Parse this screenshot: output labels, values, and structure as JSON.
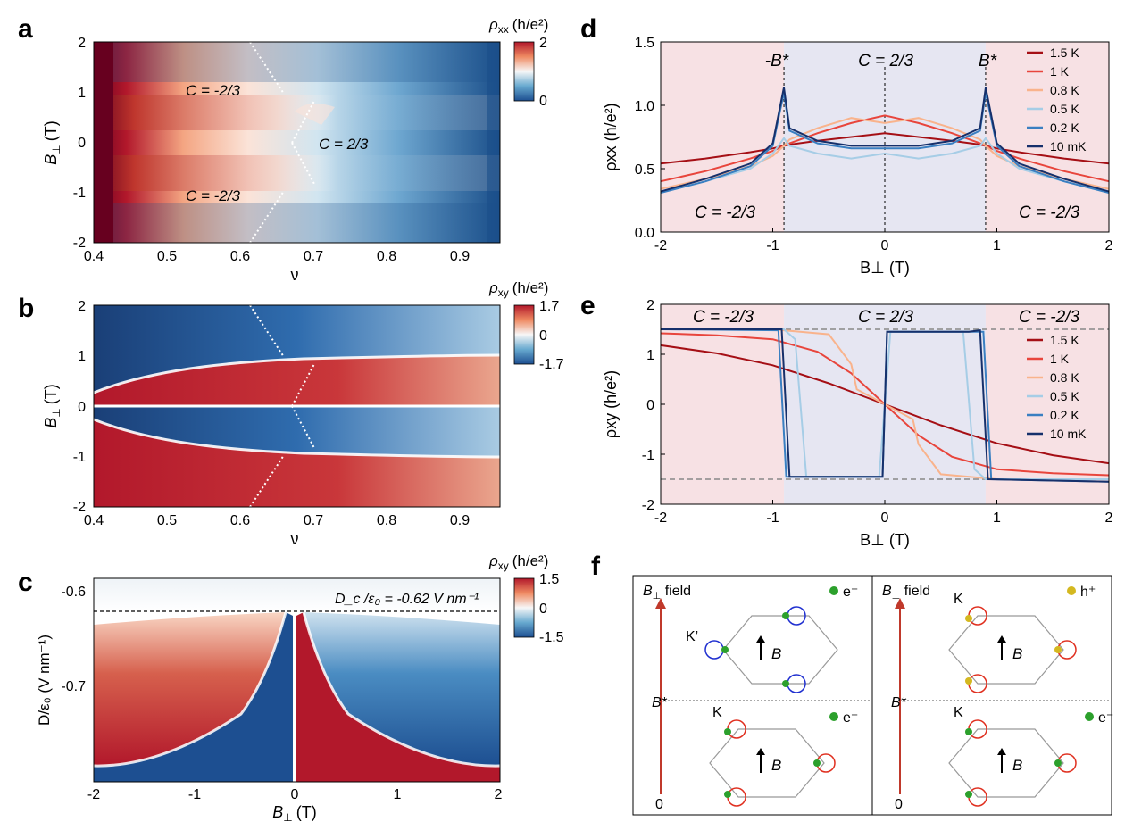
{
  "panel_letters": {
    "a": "a",
    "b": "b",
    "c": "c",
    "d": "d",
    "e": "e",
    "f": "f"
  },
  "colors": {
    "red": "#b2182b",
    "blue": "#2166ac",
    "white": "#ffffff",
    "pink_bg": "#f7e1e4",
    "lav_bg": "#e6e6f2"
  },
  "panel_a": {
    "cbar_label_main": "ρ",
    "cbar_label_sub": "xx",
    "cbar_label_unit": "(h/e²)",
    "cbar_ticks": [
      "2",
      "0"
    ],
    "ylabel_main": "B",
    "ylabel_sub": "⊥",
    "ylabel_unit": "(T)",
    "xlabel": "ν",
    "yticks": [
      "2",
      "1",
      "0",
      "-1",
      "-2"
    ],
    "xticks": [
      "0.4",
      "0.5",
      "0.6",
      "0.7",
      "0.8",
      "0.9"
    ],
    "annotations": [
      "C = -2/3",
      "C = 2/3",
      "C = -2/3"
    ]
  },
  "panel_b": {
    "cbar_label_main": "ρ",
    "cbar_label_sub": "xy",
    "cbar_label_unit": "(h/e²)",
    "cbar_ticks": [
      "1.7",
      "0",
      "-1.7"
    ],
    "ylabel_main": "B",
    "ylabel_sub": "⊥",
    "ylabel_unit": "(T)",
    "xlabel": "ν",
    "yticks": [
      "2",
      "1",
      "0",
      "-1",
      "-2"
    ],
    "xticks": [
      "0.4",
      "0.5",
      "0.6",
      "0.7",
      "0.8",
      "0.9"
    ]
  },
  "panel_c": {
    "cbar_label_main": "ρ",
    "cbar_label_sub": "xy",
    "cbar_label_unit": "(h/e²)",
    "cbar_ticks": [
      "1.5",
      "0",
      "-1.5"
    ],
    "ylabel": "D/ε₀ (V nm⁻¹)",
    "xlabel_main": "B",
    "xlabel_sub": "⊥",
    "xlabel_unit": "(T)",
    "yticks": [
      "-0.6",
      "-0.7"
    ],
    "xticks": [
      "-2",
      "-1",
      "0",
      "1",
      "2"
    ],
    "annotation": "D_c /ε₀ = -0.62 V nm⁻¹"
  },
  "chart_data": [
    {
      "type": "line",
      "panel": "d",
      "ylabel": "ρxx (h/e²)",
      "xlabel": "B⊥ (T)",
      "xlim": [
        -2,
        2
      ],
      "ylim": [
        0,
        1.5
      ],
      "xticks": [
        "-2",
        "-1",
        "0",
        "1",
        "2"
      ],
      "yticks": [
        "0.0",
        "0.5",
        "1.0",
        "1.5"
      ],
      "annotations": [
        "-B*",
        "C = 2/3",
        "B*",
        "C = -2/3",
        "C = -2/3"
      ],
      "legend": "top-right",
      "x": [
        -2,
        -1.6,
        -1.2,
        -1.0,
        -0.9,
        -0.85,
        -0.6,
        -0.3,
        0,
        0.3,
        0.6,
        0.85,
        0.9,
        1.0,
        1.2,
        1.6,
        2
      ],
      "series": [
        {
          "name": "1.5 K",
          "color": "#a50f15",
          "values": [
            0.54,
            0.58,
            0.63,
            0.66,
            0.68,
            0.69,
            0.72,
            0.75,
            0.78,
            0.75,
            0.72,
            0.69,
            0.68,
            0.66,
            0.63,
            0.58,
            0.54
          ]
        },
        {
          "name": "1 K",
          "color": "#e8453c",
          "values": [
            0.4,
            0.48,
            0.58,
            0.64,
            0.68,
            0.7,
            0.78,
            0.86,
            0.92,
            0.86,
            0.78,
            0.7,
            0.68,
            0.64,
            0.58,
            0.48,
            0.4
          ]
        },
        {
          "name": "0.8 K",
          "color": "#f9b38c",
          "values": [
            0.34,
            0.42,
            0.52,
            0.6,
            0.68,
            0.73,
            0.82,
            0.9,
            0.86,
            0.9,
            0.82,
            0.73,
            0.68,
            0.6,
            0.52,
            0.42,
            0.34
          ]
        },
        {
          "name": "0.5 K",
          "color": "#a6cde6",
          "values": [
            0.31,
            0.4,
            0.5,
            0.62,
            0.74,
            0.68,
            0.62,
            0.58,
            0.62,
            0.58,
            0.62,
            0.68,
            0.74,
            0.62,
            0.5,
            0.4,
            0.31
          ]
        },
        {
          "name": "0.2 K",
          "color": "#3a7fc1",
          "values": [
            0.31,
            0.4,
            0.52,
            0.68,
            1.1,
            0.8,
            0.7,
            0.66,
            0.66,
            0.66,
            0.7,
            0.8,
            1.1,
            0.68,
            0.52,
            0.4,
            0.31
          ]
        },
        {
          "name": "10 mK",
          "color": "#16306b",
          "values": [
            0.32,
            0.42,
            0.54,
            0.7,
            1.14,
            0.82,
            0.72,
            0.68,
            0.68,
            0.68,
            0.72,
            0.82,
            1.14,
            0.7,
            0.54,
            0.42,
            0.32
          ]
        }
      ]
    },
    {
      "type": "line",
      "panel": "e",
      "ylabel": "ρxy (h/e²)",
      "xlabel": "B⊥ (T)",
      "xlim": [
        -2,
        2
      ],
      "ylim": [
        -2,
        2
      ],
      "xticks": [
        "-2",
        "-1",
        "0",
        "1",
        "2"
      ],
      "yticks": [
        "2",
        "1",
        "0",
        "-1",
        "-2"
      ],
      "annotations": [
        "C = -2/3",
        "C = 2/3",
        "C = -2/3"
      ],
      "legend": "right",
      "series": [
        {
          "name": "1.5 K",
          "color": "#a50f15",
          "x": [
            -2,
            -1.5,
            -1,
            -0.5,
            0,
            0.5,
            1,
            1.5,
            2
          ],
          "values": [
            1.18,
            1.02,
            0.78,
            0.42,
            0,
            -0.42,
            -0.78,
            -1.02,
            -1.18
          ]
        },
        {
          "name": "1 K",
          "color": "#e8453c",
          "x": [
            -2,
            -1.5,
            -1,
            -0.6,
            -0.3,
            0,
            0.3,
            0.6,
            1,
            1.5,
            2
          ],
          "values": [
            1.42,
            1.38,
            1.3,
            1.05,
            0.62,
            0,
            -0.62,
            -1.05,
            -1.3,
            -1.38,
            -1.42
          ]
        },
        {
          "name": "0.8 K",
          "color": "#f9b38c",
          "x": [
            -2,
            -1,
            -0.5,
            -0.3,
            -0.25,
            0,
            0.25,
            0.3,
            0.5,
            1,
            2
          ],
          "values": [
            1.5,
            1.5,
            1.4,
            0.8,
            0.3,
            0.0,
            -0.3,
            -0.8,
            -1.4,
            -1.5,
            -1.5
          ]
        },
        {
          "name": "0.5 K",
          "color": "#a6cde6",
          "x": [
            -2,
            -0.9,
            -0.8,
            -0.7,
            -0.05,
            0,
            0.05,
            0.7,
            0.8,
            0.9,
            2
          ],
          "values": [
            1.5,
            1.5,
            1.3,
            -1.45,
            -1.45,
            0,
            1.45,
            1.45,
            -1.3,
            -1.5,
            -1.5
          ]
        },
        {
          "name": "0.2 K",
          "color": "#3a7fc1",
          "x": [
            -2,
            -0.95,
            -0.88,
            -0.8,
            -0.02,
            0,
            0.02,
            0.8,
            0.88,
            0.95,
            2
          ],
          "values": [
            1.5,
            1.48,
            -1.45,
            -1.45,
            -1.45,
            0,
            1.45,
            1.45,
            1.45,
            -1.5,
            -1.55
          ]
        },
        {
          "name": "10 mK",
          "color": "#16306b",
          "x": [
            -2,
            -0.92,
            -0.85,
            -0.75,
            -0.02,
            0,
            0.02,
            0.75,
            0.85,
            0.92,
            2
          ],
          "values": [
            1.5,
            1.5,
            -1.45,
            -1.45,
            -1.45,
            0,
            1.45,
            1.45,
            1.48,
            -1.5,
            -1.55
          ]
        }
      ]
    }
  ],
  "panel_f": {
    "left_top": {
      "field_label_main": "B",
      "field_label_sub": "⊥",
      "field_label_rest": " field",
      "carrier": "e⁻",
      "valley": "K’",
      "b_label": "B"
    },
    "left_bottom": {
      "bstar": "B*",
      "valley": "K",
      "carrier": "e⁻",
      "b_label": "B",
      "zero": "0"
    },
    "right_top": {
      "field_label_main": "B",
      "field_label_sub": "⊥",
      "field_label_rest": " field",
      "carrier": "h⁺",
      "valley": "K",
      "b_label": "B"
    },
    "right_bottom": {
      "bstar": "B*",
      "valley": "K",
      "carrier": "e⁻",
      "b_label": "B",
      "zero": "0"
    }
  }
}
